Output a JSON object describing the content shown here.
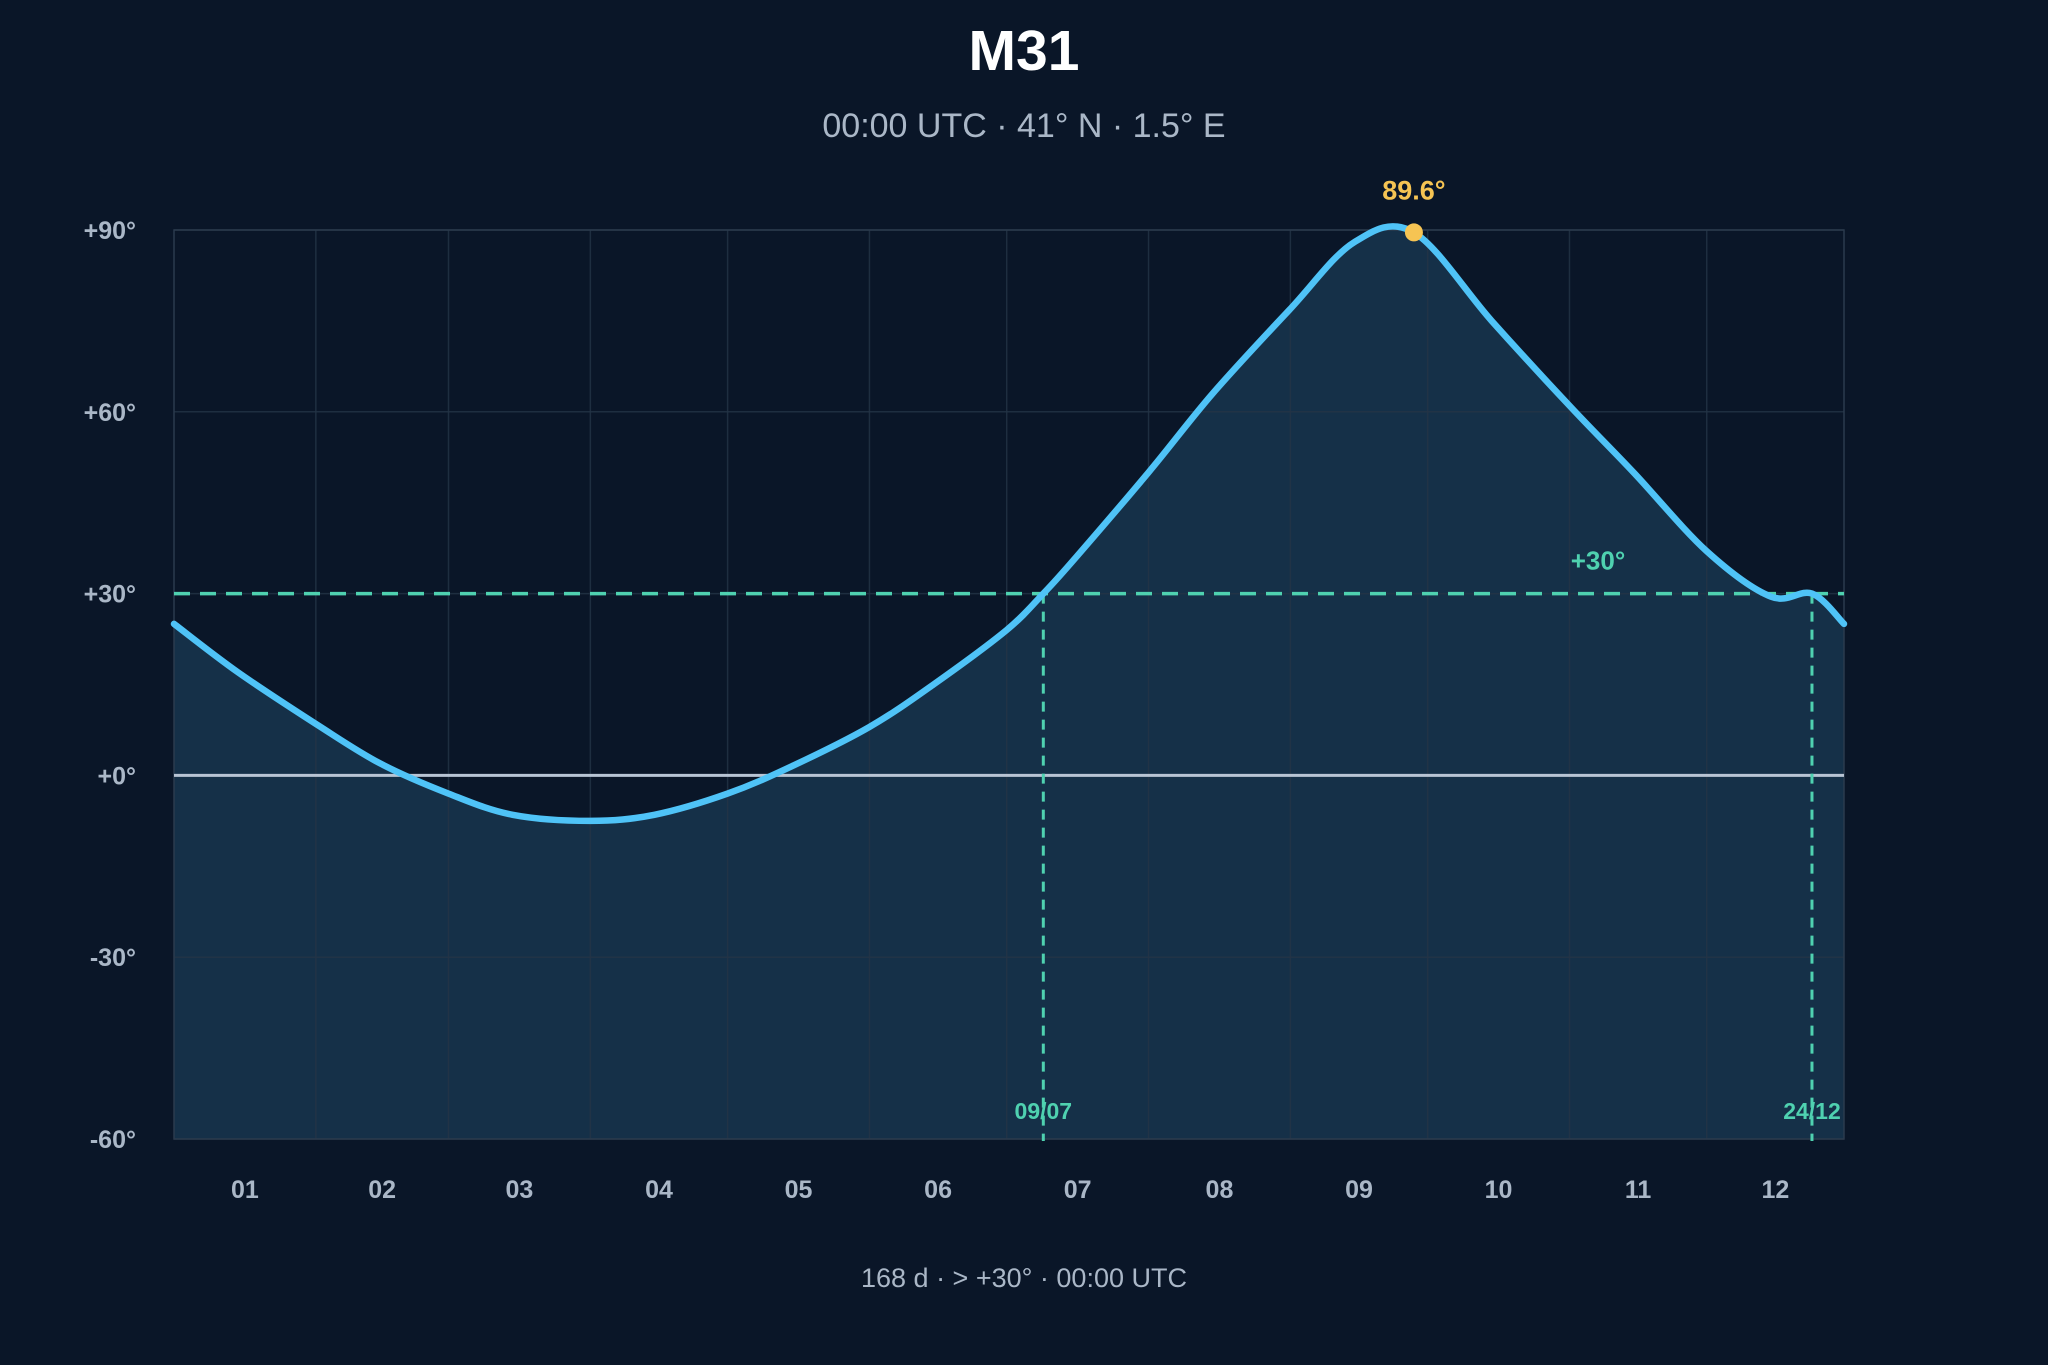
{
  "chart_data": {
    "type": "area",
    "title": "M31",
    "subtitle": "00:00 UTC · 41° N · 1.5° E",
    "footer": "168 d · > +30° · 00:00 UTC",
    "xlabel": "",
    "ylabel": "",
    "x_tick_labels": [
      "01",
      "02",
      "03",
      "04",
      "05",
      "06",
      "07",
      "08",
      "09",
      "10",
      "11",
      "12"
    ],
    "y_ticks": [
      90,
      60,
      30,
      0,
      -30,
      -60
    ],
    "y_tick_labels": [
      "+90°",
      "+60°",
      "+30°",
      "+0°",
      "-30°",
      "-60°"
    ],
    "ylim": [
      -60,
      90
    ],
    "xlim": [
      "2024-01-01",
      "2024-12-31"
    ],
    "grid": true,
    "series": [
      {
        "x": [
          "2024-01-01",
          "2024-01-15",
          "2024-02-01",
          "2024-02-15",
          "2024-03-01",
          "2024-03-15",
          "2024-04-01",
          "2024-04-15",
          "2024-05-01",
          "2024-05-15",
          "2024-06-01",
          "2024-06-15",
          "2024-07-01",
          "2024-07-09",
          "2024-07-15",
          "2024-08-01",
          "2024-08-15",
          "2024-09-01",
          "2024-09-15",
          "2024-09-28",
          "2024-10-15",
          "2024-11-01",
          "2024-11-15",
          "2024-12-01",
          "2024-12-15",
          "2024-12-24",
          "2024-12-31"
        ],
        "y": [
          25,
          17,
          8.5,
          2,
          -3,
          -6.5,
          -7.5,
          -6.5,
          -3,
          1.5,
          8,
          15,
          24,
          30,
          35,
          50,
          63,
          77,
          88,
          89.6,
          75,
          61,
          50,
          37,
          29.5,
          30,
          25
        ]
      }
    ],
    "threshold": {
      "value": 30,
      "label": "+30°",
      "color": "#4fd1b0"
    },
    "crossings": [
      {
        "x": "2024-07-09",
        "label": "09/07"
      },
      {
        "x": "2024-12-24",
        "label": "24/12"
      }
    ],
    "peak": {
      "x": "2024-09-28",
      "y": 89.6,
      "label": "89.6°",
      "color": "#f6c453"
    },
    "colors": {
      "line": "#4fc3f7",
      "fill": "#16324a",
      "zero_line": "#b8c4d4",
      "grid": "#243446",
      "text": "#aab7c7",
      "background": "#0a1628"
    }
  }
}
